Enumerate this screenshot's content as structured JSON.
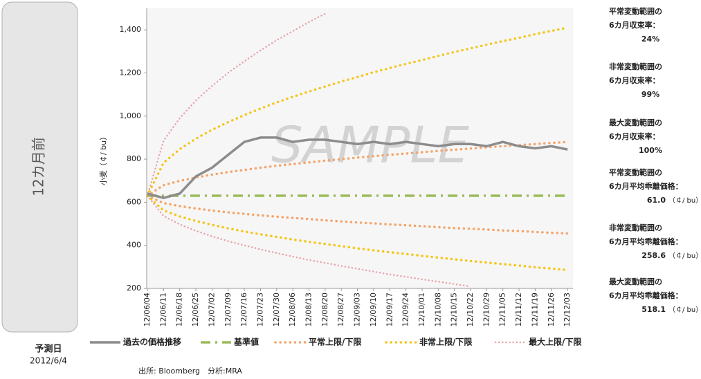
{
  "chart_data": {
    "type": "line",
    "period_label": "12カ月前",
    "forecast_label": "予測日",
    "forecast_date": "2012/6/4",
    "y_label": "小麦（￠/ bu）",
    "watermark": "SAMPLE",
    "source": "出所: Bloomberg　分析:MRA",
    "categories": [
      "12/06/04",
      "12/06/11",
      "12/06/18",
      "12/06/25",
      "12/07/02",
      "12/07/09",
      "12/07/16",
      "12/07/23",
      "12/07/30",
      "12/08/06",
      "12/08/13",
      "12/08/20",
      "12/08/27",
      "12/09/03",
      "12/09/10",
      "12/09/17",
      "12/09/24",
      "12/10/01",
      "12/10/08",
      "12/10/15",
      "12/10/22",
      "12/10/29",
      "12/11/05",
      "12/11/12",
      "12/11/19",
      "12/11/26",
      "12/12/03"
    ],
    "ylim": [
      200,
      1500
    ],
    "yticks": [
      200,
      400,
      600,
      800,
      {
        "value": 1000,
        "label": "1,000"
      },
      {
        "value": 1200,
        "label": "1,200"
      },
      {
        "value": 1400,
        "label": "1,400"
      }
    ],
    "series": [
      {
        "name": "過去の価格推移",
        "color": "#8c8c8c",
        "style": "solid",
        "values": [
          640,
          620,
          640,
          720,
          760,
          820,
          880,
          900,
          900,
          880,
          890,
          890,
          880,
          870,
          880,
          870,
          880,
          870,
          860,
          870,
          870,
          860,
          880,
          860,
          850,
          860,
          845
        ]
      },
      {
        "name": "基準値",
        "color": "#9bbb59",
        "style": "dashdot",
        "values": [
          630,
          630,
          630,
          630,
          630,
          630,
          630,
          630,
          630,
          630,
          630,
          630,
          630,
          630,
          630,
          630,
          630,
          630,
          630,
          630,
          630,
          630,
          630,
          630,
          630,
          630,
          630
        ]
      },
      {
        "name": "平常上限/下限",
        "color": "#f4a46a",
        "style": "dotted",
        "values": [
          630,
          679,
          699,
          715,
          728,
          740,
          750,
          760,
          769,
          777,
          785,
          793,
          800,
          807,
          814,
          820,
          826,
          832,
          838,
          844,
          849,
          855,
          860,
          865,
          870,
          875,
          880
        ],
        "lower": [
          630,
          596,
          582,
          571,
          561,
          553,
          546,
          539,
          533,
          527,
          522,
          516,
          511,
          506,
          502,
          497,
          493,
          489,
          484,
          480,
          477,
          473,
          469,
          466,
          462,
          458,
          455
        ]
      },
      {
        "name": "非常上限/下限",
        "color": "#f5c518",
        "style": "dotted",
        "values": [
          630,
          783,
          846,
          895,
          936,
          972,
          1004,
          1035,
          1063,
          1089,
          1114,
          1137,
          1160,
          1181,
          1203,
          1223,
          1242,
          1260,
          1279,
          1297,
          1314,
          1331,
          1348,
          1363,
          1380,
          1395,
          1410
        ],
        "lower": [
          630,
          562,
          534,
          513,
          495,
          479,
          464,
          451,
          439,
          427,
          416,
          406,
          396,
          386,
          377,
          368,
          360,
          351,
          343,
          335,
          327,
          320,
          313,
          306,
          298,
          292,
          285
        ]
      },
      {
        "name": "最大上限/下限",
        "color": "#e8a3ab",
        "style": "finedot",
        "values": [
          630,
          885,
          990,
          1072,
          1140,
          1201,
          1254,
          1305,
          1352,
          1394,
          1436,
          1475,
          null,
          null,
          null,
          null,
          null,
          null,
          null,
          null,
          null,
          null,
          null,
          null,
          null,
          null,
          null
        ],
        "lower": [
          630,
          536,
          497,
          467,
          442,
          419,
          400,
          381,
          364,
          348,
          332,
          318,
          304,
          291,
          278,
          265,
          254,
          242,
          231,
          220,
          209,
          null,
          null,
          null,
          null,
          null,
          null
        ]
      }
    ],
    "notes": [
      {
        "lines": [
          "平常変動範囲の",
          "6カ月収束率："
        ],
        "value": "24%"
      },
      {
        "lines": [
          "非常変動範囲の",
          "6カ月収束率："
        ],
        "value": "99%"
      },
      {
        "lines": [
          "最大変動範囲の",
          "6カ月収束率："
        ],
        "value": "100%"
      },
      {
        "lines": [
          "平常変動範囲の",
          "6カ月平均乖離価格："
        ],
        "value": "61.0",
        "unit": "（￠/ bu）"
      },
      {
        "lines": [
          "非常変動範囲の",
          "6カ月平均乖離価格："
        ],
        "value": "258.6",
        "unit": "（￠/ bu）"
      },
      {
        "lines": [
          "最大変動範囲の",
          "6カ月平均乖離価格："
        ],
        "value": "518.1",
        "unit": "（￠/ bu）"
      }
    ]
  }
}
